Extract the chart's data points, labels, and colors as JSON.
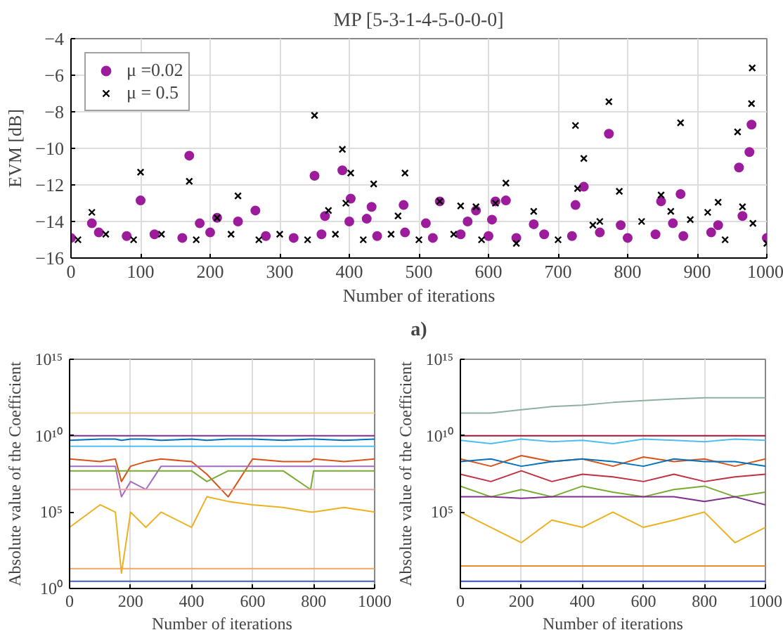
{
  "chart_data": [
    {
      "type": "scatter",
      "title": "MP [5-3-1-4-5-0-0-0]",
      "xlabel": "Number of iterations",
      "ylabel": "EVM [dB]",
      "annotations": [
        "a)"
      ],
      "xlim": [
        0,
        1000
      ],
      "ylim": [
        -16,
        -4
      ],
      "xticks": [
        0,
        100,
        200,
        300,
        400,
        500,
        600,
        700,
        800,
        900,
        1000
      ],
      "yticks": [
        -16,
        -14,
        -12,
        -10,
        -8,
        -6,
        -4
      ],
      "grid": true,
      "legend": "top left",
      "series": [
        {
          "name": "μ =0.02",
          "color": "#9c1c9c",
          "marker": "circle",
          "x": [
            0,
            30,
            40,
            80,
            100,
            120,
            160,
            170,
            185,
            200,
            210,
            240,
            265,
            280,
            320,
            350,
            360,
            365,
            390,
            395,
            400,
            402,
            425,
            432,
            440,
            478,
            480,
            510,
            520,
            530,
            560,
            570,
            582,
            600,
            605,
            610,
            625,
            640,
            665,
            680,
            720,
            725,
            737,
            760,
            773,
            790,
            800,
            840,
            848,
            865,
            876,
            880,
            920,
            930,
            960,
            965,
            975,
            978,
            1000
          ],
          "values": [
            -14.9,
            -14.1,
            -14.6,
            -14.8,
            -12.85,
            -14.7,
            -14.9,
            -10.4,
            -14.1,
            -14.6,
            -13.8,
            -14.0,
            -13.4,
            -14.8,
            -14.9,
            -11.5,
            -14.7,
            -13.7,
            -11.2,
            null,
            -14.0,
            -12.75,
            -13.85,
            -13.2,
            -14.8,
            -13.1,
            -14.6,
            -14.1,
            -14.9,
            -12.9,
            -14.7,
            -14.0,
            -13.4,
            -14.8,
            -13.9,
            -12.9,
            -12.85,
            -14.9,
            -14.15,
            -14.7,
            -14.8,
            -13.1,
            -12.1,
            -14.6,
            -9.2,
            -14.2,
            -14.9,
            -14.7,
            -12.9,
            -14.1,
            -12.5,
            -14.8,
            -14.6,
            -14.2,
            -11.05,
            -13.7,
            -10.2,
            -8.7,
            -14.9
          ]
        },
        {
          "name": "μ = 0.5",
          "color": "#000000",
          "marker": "cross",
          "x": [
            10,
            30,
            50,
            90,
            100,
            130,
            170,
            180,
            210,
            230,
            240,
            270,
            300,
            340,
            350,
            370,
            380,
            390,
            395,
            402,
            420,
            435,
            460,
            470,
            480,
            500,
            530,
            550,
            560,
            582,
            590,
            610,
            625,
            640,
            665,
            700,
            725,
            728,
            737,
            750,
            760,
            773,
            788,
            820,
            848,
            862,
            876,
            890,
            915,
            930,
            940,
            958,
            965,
            978,
            979,
            980,
            1000
          ],
          "values": [
            -15.0,
            -13.5,
            -14.7,
            -15.0,
            -11.3,
            -14.7,
            -11.8,
            -15.0,
            -13.8,
            -14.7,
            -12.6,
            -15.0,
            -14.7,
            -15.0,
            -8.2,
            -13.4,
            -14.7,
            -10.05,
            -13.0,
            -11.35,
            -15.0,
            -11.95,
            -14.7,
            -13.7,
            -11.35,
            -15.0,
            -12.9,
            -14.7,
            -13.15,
            -13.2,
            -15.0,
            -13.0,
            -11.9,
            -15.2,
            -13.45,
            -15.0,
            -8.75,
            -12.2,
            -10.55,
            -14.2,
            -14.0,
            -7.45,
            -12.35,
            -14.0,
            -12.55,
            -13.45,
            -8.6,
            -13.9,
            -13.5,
            -12.95,
            -15.0,
            -9.1,
            -13.2,
            -7.55,
            -5.6,
            -14.1,
            -15.2
          ]
        }
      ]
    },
    {
      "type": "line",
      "xlabel": "Number of iterations",
      "ylabel": "Absolute value of the Coefficient",
      "log": true,
      "xlim": [
        0,
        1000
      ],
      "ylim": [
        1,
        1000000000000000.0
      ],
      "xticks": [
        0,
        200,
        400,
        600,
        800,
        1000
      ],
      "yticks": [
        {
          "value": 1,
          "label": "10⁰"
        },
        {
          "value": 100000.0,
          "label": "10⁵"
        },
        {
          "value": 10000000000.0,
          "label": "10¹⁰"
        },
        {
          "value": 1000000000000000.0,
          "label": "10¹⁵"
        }
      ],
      "grid": "x",
      "x": [
        0,
        100,
        150,
        170,
        200,
        250,
        300,
        400,
        450,
        520,
        600,
        700,
        790,
        800,
        900,
        1000
      ],
      "series": [
        {
          "color": "#f2d58a",
          "values": [
            300000000000.0,
            300000000000.0,
            300000000000.0,
            300000000000.0,
            300000000000.0,
            300000000000.0,
            300000000000.0,
            300000000000.0,
            300000000000.0,
            300000000000.0,
            300000000000.0,
            300000000000.0,
            300000000000.0,
            300000000000.0,
            300000000000.0,
            300000000000.0
          ]
        },
        {
          "color": "#7e2f8e",
          "values": [
            10000000000.0,
            10000000000.0,
            10000000000.0,
            10000000000.0,
            10000000000.0,
            10000000000.0,
            10000000000.0,
            10000000000.0,
            10000000000.0,
            10000000000.0,
            10000000000.0,
            10000000000.0,
            10000000000.0,
            10000000000.0,
            10000000000.0,
            10000000000.0
          ]
        },
        {
          "color": "#0072bd",
          "values": [
            5000000000.0,
            6000000000.0,
            6000000000.0,
            5000000000.0,
            6000000000.0,
            6000000000.0,
            5000000000.0,
            6000000000.0,
            5000000000.0,
            6000000000.0,
            6000000000.0,
            5000000000.0,
            6000000000.0,
            6000000000.0,
            5000000000.0,
            6000000000.0
          ]
        },
        {
          "color": "#4dbeee",
          "values": [
            2000000000.0,
            2000000000.0,
            2000000000.0,
            2000000000.0,
            2000000000.0,
            2000000000.0,
            2000000000.0,
            2000000000.0,
            2000000000.0,
            2000000000.0,
            2000000000.0,
            2000000000.0,
            2000000000.0,
            2000000000.0,
            2000000000.0,
            2000000000.0
          ]
        },
        {
          "color": "#d95319",
          "values": [
            300000000.0,
            200000000.0,
            300000000.0,
            10000000.0,
            100000000.0,
            200000000.0,
            300000000.0,
            200000000.0,
            30000000.0,
            1000000.0,
            300000000.0,
            200000000.0,
            200000000.0,
            300000000.0,
            200000000.0,
            300000000.0
          ]
        },
        {
          "color": "#a56bc0",
          "values": [
            100000000.0,
            100000000.0,
            100000000.0,
            1000000.0,
            10000000.0,
            3000000.0,
            100000000.0,
            100000000.0,
            100000000.0,
            100000000.0,
            100000000.0,
            100000000.0,
            100000000.0,
            100000000.0,
            100000000.0,
            100000000.0
          ]
        },
        {
          "color": "#77ac30",
          "values": [
            50000000.0,
            50000000.0,
            50000000.0,
            50000000.0,
            50000000.0,
            50000000.0,
            50000000.0,
            50000000.0,
            10000000.0,
            50000000.0,
            50000000.0,
            50000000.0,
            3000000.0,
            50000000.0,
            50000000.0,
            50000000.0
          ]
        },
        {
          "color": "#e8a0a0",
          "values": [
            3000000.0,
            3000000.0,
            3000000.0,
            3000000.0,
            3000000.0,
            3000000.0,
            3000000.0,
            3000000.0,
            3000000.0,
            3000000.0,
            3000000.0,
            3000000.0,
            3000000.0,
            3000000.0,
            3000000.0,
            3000000.0
          ]
        },
        {
          "color": "#edb120",
          "values": [
            10000.0,
            300000.0,
            100000.0,
            10,
            100000.0,
            10000.0,
            100000.0,
            10000.0,
            1000000.0,
            500000.0,
            300000.0,
            200000.0,
            100000.0,
            100000.0,
            200000.0,
            100000.0
          ]
        },
        {
          "color": "#f0a860",
          "values": [
            20,
            20,
            20,
            20,
            20,
            20,
            20,
            20,
            20,
            20,
            20,
            20,
            20,
            20,
            20,
            20
          ]
        },
        {
          "color": "#4060b0",
          "values": [
            3,
            3,
            3,
            3,
            3,
            3,
            3,
            3,
            3,
            3,
            3,
            3,
            3,
            3,
            3,
            3
          ]
        }
      ]
    },
    {
      "type": "line",
      "xlabel": "Number of iterations",
      "ylabel": "Absolute value of the Coefficient",
      "log": true,
      "xlim": [
        0,
        1000
      ],
      "ylim": [
        1,
        1000000000000000.0
      ],
      "xticks": [
        0,
        200,
        400,
        600,
        800,
        1000
      ],
      "yticks": [
        {
          "value": 1,
          "label": null
        },
        {
          "value": 100000.0,
          "label": "10⁵"
        },
        {
          "value": 10000000000.0,
          "label": "10¹⁰"
        },
        {
          "value": 1000000000000000.0,
          "label": "10¹⁵"
        }
      ],
      "grid": "x",
      "x": [
        0,
        100,
        200,
        300,
        400,
        500,
        600,
        700,
        800,
        900,
        1000
      ],
      "series": [
        {
          "color": "#8fb0a0",
          "values": [
            300000000000.0,
            300000000000.0,
            500000000000.0,
            800000000000.0,
            1000000000000.0,
            1500000000000.0,
            2000000000000.0,
            2500000000000.0,
            3000000000000.0,
            3000000000000.0,
            3000000000000.0
          ]
        },
        {
          "color": "#a2142f",
          "values": [
            10000000000.0,
            10000000000.0,
            10000000000.0,
            10000000000.0,
            10000000000.0,
            10000000000.0,
            10000000000.0,
            10000000000.0,
            10000000000.0,
            10000000000.0,
            10000000000.0
          ]
        },
        {
          "color": "#4dbeee",
          "values": [
            5000000000.0,
            3000000000.0,
            6000000000.0,
            4000000000.0,
            5000000000.0,
            3000000000.0,
            6000000000.0,
            5000000000.0,
            4000000000.0,
            6000000000.0,
            5000000000.0
          ]
        },
        {
          "color": "#d95319",
          "values": [
            300000000.0,
            100000000.0,
            500000000.0,
            200000000.0,
            300000000.0,
            100000000.0,
            400000000.0,
            200000000.0,
            300000000.0,
            100000000.0,
            300000000.0
          ]
        },
        {
          "color": "#0072bd",
          "values": [
            200000000.0,
            300000000.0,
            100000000.0,
            200000000.0,
            300000000.0,
            200000000.0,
            100000000.0,
            300000000.0,
            200000000.0,
            200000000.0,
            100000000.0
          ]
        },
        {
          "color": "#c03040",
          "values": [
            30000000.0,
            10000000.0,
            50000000.0,
            10000000.0,
            30000000.0,
            20000000.0,
            10000000.0,
            30000000.0,
            10000000.0,
            20000000.0,
            30000000.0
          ]
        },
        {
          "color": "#77ac30",
          "values": [
            5000000.0,
            1000000.0,
            3000000.0,
            1000000.0,
            5000000.0,
            2000000.0,
            1000000.0,
            3000000.0,
            5000000.0,
            1000000.0,
            2000000.0
          ]
        },
        {
          "color": "#7e2f8e",
          "values": [
            1000000.0,
            1000000.0,
            800000.0,
            1000000.0,
            1000000.0,
            1000000.0,
            1000000.0,
            1000000.0,
            500000.0,
            1000000.0,
            300000.0
          ]
        },
        {
          "color": "#edb120",
          "values": [
            100000.0,
            10000.0,
            1000.0,
            30000.0,
            10000.0,
            100000.0,
            10000.0,
            30000.0,
            100000.0,
            1000.0,
            10000.0
          ]
        },
        {
          "color": "#ed8b30",
          "values": [
            30,
            30,
            30,
            30,
            30,
            30,
            30,
            30,
            30,
            30,
            30
          ]
        },
        {
          "color": "#3050c0",
          "values": [
            3,
            3,
            3,
            3,
            3,
            3,
            3,
            3,
            3,
            3,
            3
          ]
        }
      ]
    }
  ]
}
